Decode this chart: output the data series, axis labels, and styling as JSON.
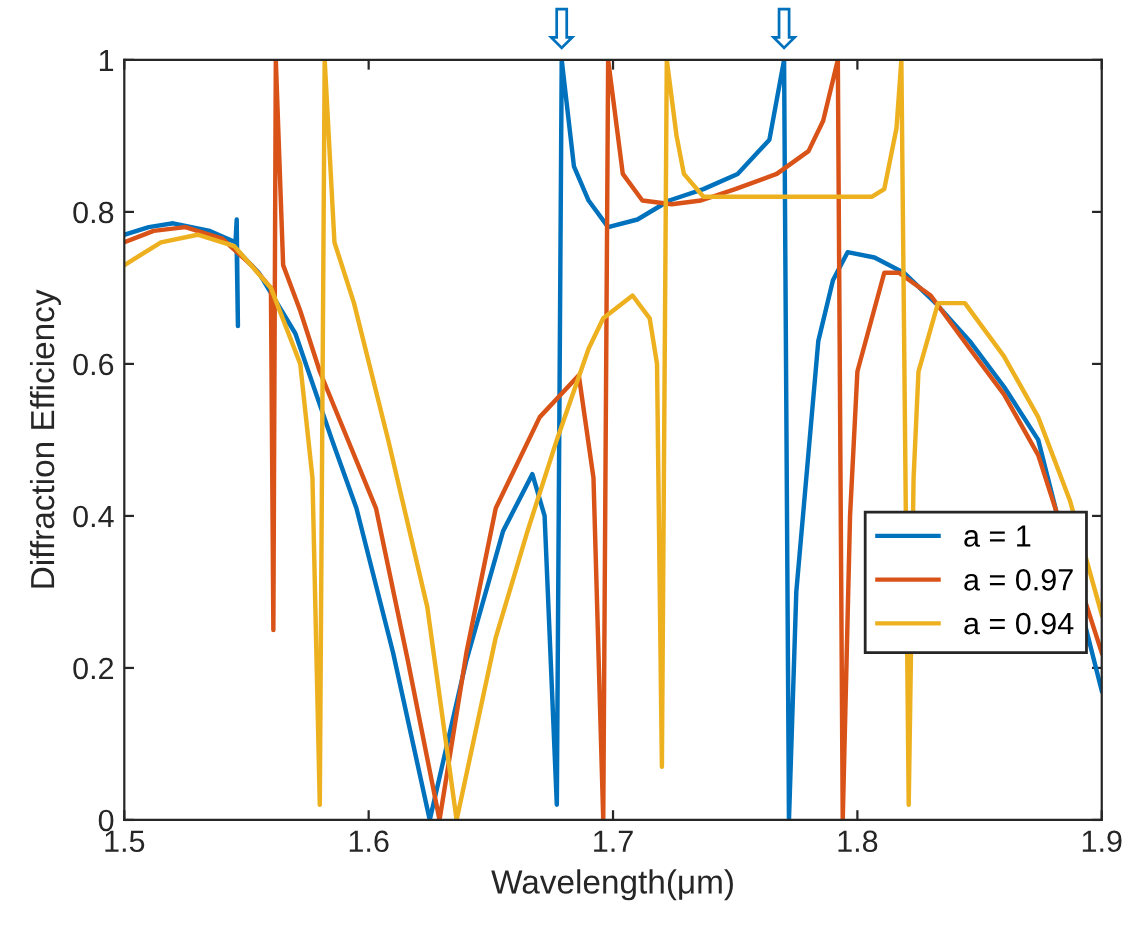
{
  "chart_data": {
    "type": "line",
    "xlabel": "Wavelength(μm)",
    "ylabel": "Diffraction Efficiency",
    "xlim": [
      1.5,
      1.9
    ],
    "ylim": [
      0,
      1
    ],
    "xticks": [
      1.5,
      1.6,
      1.7,
      1.8,
      1.9
    ],
    "yticks": [
      0,
      0.2,
      0.4,
      0.6,
      0.8,
      1
    ],
    "grid": false,
    "legend": "bottom right",
    "marker": "none",
    "line_style": "solid",
    "annotations": [
      {
        "text": "⇩",
        "x": 1.679,
        "y": 1
      },
      {
        "text": "⇩",
        "x": 1.77,
        "y": 1
      }
    ],
    "series": [
      {
        "name": "a = 1",
        "color": "#0072bd",
        "x": [
          1.5,
          1.51,
          1.52,
          1.535,
          1.5455,
          1.546,
          1.5465,
          1.546,
          1.555,
          1.57,
          1.585,
          1.595,
          1.61,
          1.625,
          1.64,
          1.655,
          1.667,
          1.672,
          1.677,
          1.679,
          1.684,
          1.69,
          1.698,
          1.71,
          1.723,
          1.737,
          1.751,
          1.764,
          1.77,
          1.772,
          1.775,
          1.778,
          1.784,
          1.79,
          1.796,
          1.807,
          1.819,
          1.832,
          1.846,
          1.86,
          1.874,
          1.9
        ],
        "values": [
          0.77,
          0.78,
          0.785,
          0.775,
          0.76,
          0.79,
          0.65,
          0.75,
          0.72,
          0.64,
          0.5,
          0.41,
          0.22,
          0.0,
          0.21,
          0.38,
          0.455,
          0.4,
          0.02,
          1.0,
          0.86,
          0.815,
          0.78,
          0.79,
          0.815,
          0.83,
          0.85,
          0.895,
          1.0,
          0.0,
          0.3,
          0.41,
          0.63,
          0.71,
          0.747,
          0.74,
          0.72,
          0.68,
          0.63,
          0.57,
          0.5,
          0.17
        ]
      },
      {
        "name": "a = 0.97",
        "color": "#d95319",
        "x": [
          1.5,
          1.512,
          1.525,
          1.54,
          1.552,
          1.56,
          1.561,
          1.562,
          1.565,
          1.572,
          1.58,
          1.603,
          1.616,
          1.629,
          1.64,
          1.652,
          1.67,
          1.686,
          1.692,
          1.696,
          1.698,
          1.704,
          1.712,
          1.724,
          1.736,
          1.75,
          1.767,
          1.78,
          1.786,
          1.792,
          1.794,
          1.797,
          1.8,
          1.811,
          1.817,
          1.83,
          1.846,
          1.86,
          1.874,
          1.9
        ],
        "values": [
          0.76,
          0.775,
          0.78,
          0.765,
          0.73,
          0.7,
          0.25,
          1.0,
          0.73,
          0.67,
          0.59,
          0.41,
          0.21,
          0.0,
          0.22,
          0.41,
          0.53,
          0.585,
          0.45,
          0.0,
          1.0,
          0.85,
          0.815,
          0.81,
          0.815,
          0.83,
          0.85,
          0.88,
          0.92,
          1.0,
          0.0,
          0.4,
          0.59,
          0.72,
          0.72,
          0.69,
          0.62,
          0.56,
          0.48,
          0.22
        ]
      },
      {
        "name": "a = 0.94",
        "color": "#edb120",
        "x": [
          1.5,
          1.515,
          1.53,
          1.545,
          1.56,
          1.572,
          1.577,
          1.58,
          1.582,
          1.586,
          1.594,
          1.608,
          1.624,
          1.636,
          1.652,
          1.665,
          1.677,
          1.69,
          1.696,
          1.708,
          1.715,
          1.718,
          1.72,
          1.722,
          1.726,
          1.729,
          1.737,
          1.76,
          1.79,
          1.806,
          1.811,
          1.816,
          1.818,
          1.821,
          1.823,
          1.825,
          1.833,
          1.844,
          1.86,
          1.874,
          1.887,
          1.9
        ],
        "values": [
          0.73,
          0.76,
          0.77,
          0.755,
          0.7,
          0.6,
          0.45,
          0.02,
          1.0,
          0.76,
          0.68,
          0.5,
          0.28,
          0.0,
          0.24,
          0.38,
          0.5,
          0.62,
          0.66,
          0.69,
          0.66,
          0.6,
          0.07,
          1.0,
          0.9,
          0.85,
          0.82,
          0.82,
          0.82,
          0.82,
          0.83,
          0.91,
          1.0,
          0.02,
          0.45,
          0.59,
          0.68,
          0.68,
          0.61,
          0.53,
          0.42,
          0.27
        ]
      }
    ]
  }
}
